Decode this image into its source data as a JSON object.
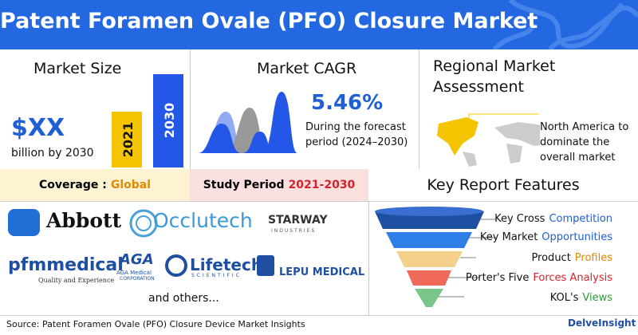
{
  "header": {
    "title": "Patent Foramen Ovale (PFO) Closure Market"
  },
  "market_size": {
    "title": "Market Size",
    "value": "$XX",
    "unit": "billion by 2030",
    "bars": [
      "2021",
      "2030"
    ]
  },
  "market_cagr": {
    "title": "Market CAGR",
    "value": "5.46%",
    "note": "During the forecast period (2024–2030)"
  },
  "regional": {
    "title": "Regional Market Assessment",
    "note": "North America to dominate the overall market"
  },
  "coverage": {
    "label": "Coverage :",
    "value": "Global"
  },
  "study_period": {
    "label": "Study Period",
    "value": "2021-2030"
  },
  "key_report_features": {
    "title": "Key Report Features",
    "items": [
      {
        "text": "Key Cross",
        "highlight": "Competition",
        "color": "blue"
      },
      {
        "text": "Key Market",
        "highlight": "Opportunities",
        "color": "blue"
      },
      {
        "text": "Product",
        "highlight": "Profiles",
        "color": "orange"
      },
      {
        "text": "Porter's Five",
        "highlight": "Forces Analysis",
        "color": "red"
      },
      {
        "text": "KOL's",
        "highlight": "Views",
        "color": "green"
      }
    ]
  },
  "companies": [
    {
      "name": "Abbott"
    },
    {
      "name": "Occlutech"
    },
    {
      "name": "STARWAY",
      "tagline": "INDUSTRIES"
    },
    {
      "name": "pfmmedical",
      "tagline": "Quality and Experience"
    },
    {
      "name": "AGA",
      "tagline": "AGA Medical",
      "tagline2": "CORPORATION"
    },
    {
      "name": "Lifetech",
      "tagline": "SCIENTIFIC"
    },
    {
      "name": "LEPU MEDICAL"
    }
  ],
  "others": "and others...",
  "footer": {
    "source": "Source: Patent Foramen Ovale (PFO) Closure Device Market Insights",
    "brand": "DelveInsight"
  }
}
